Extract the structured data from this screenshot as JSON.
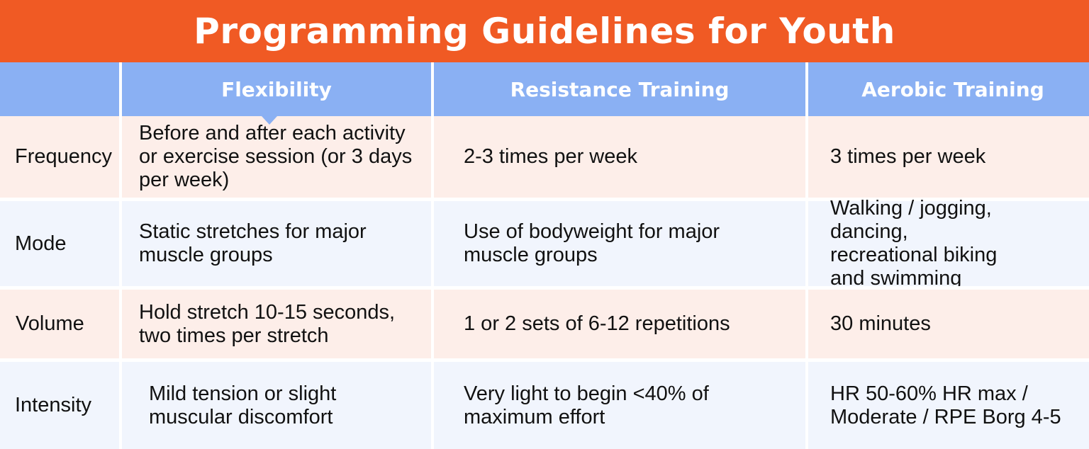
{
  "title": "Programming Guidelines for Youth",
  "columns": [
    "",
    "Flexibility",
    "Resistance Training",
    "Aerobic Training"
  ],
  "rows": [
    {
      "label": "Frequency",
      "flexibility": "Before and after each activity or exercise session (or 3 days per week)",
      "resistance": "2-3 times per week",
      "aerobic": "3 times per week"
    },
    {
      "label": "Mode",
      "flexibility": "Static stretches for major muscle groups",
      "resistance": "Use of bodyweight for major muscle groups",
      "aerobic": "Walking / jogging, dancing, recreational biking and swimming"
    },
    {
      "label": "Volume",
      "flexibility": "Hold stretch 10-15 seconds, two times per stretch",
      "resistance": "1 or 2 sets of 6-12 repetitions",
      "aerobic": "30 minutes"
    },
    {
      "label": "Intensity",
      "flexibility": "Mild tension or slight muscular discomfort",
      "resistance": "Very light to begin <40% of maximum effort",
      "aerobic": "HR 50-60% HR max / Moderate / RPE Borg 4-5"
    }
  ],
  "colors": {
    "title_bg": "#f05a24",
    "header_bg": "#8ab0f3",
    "row_pink": "#fdeee9",
    "row_blue": "#f1f5fd"
  }
}
